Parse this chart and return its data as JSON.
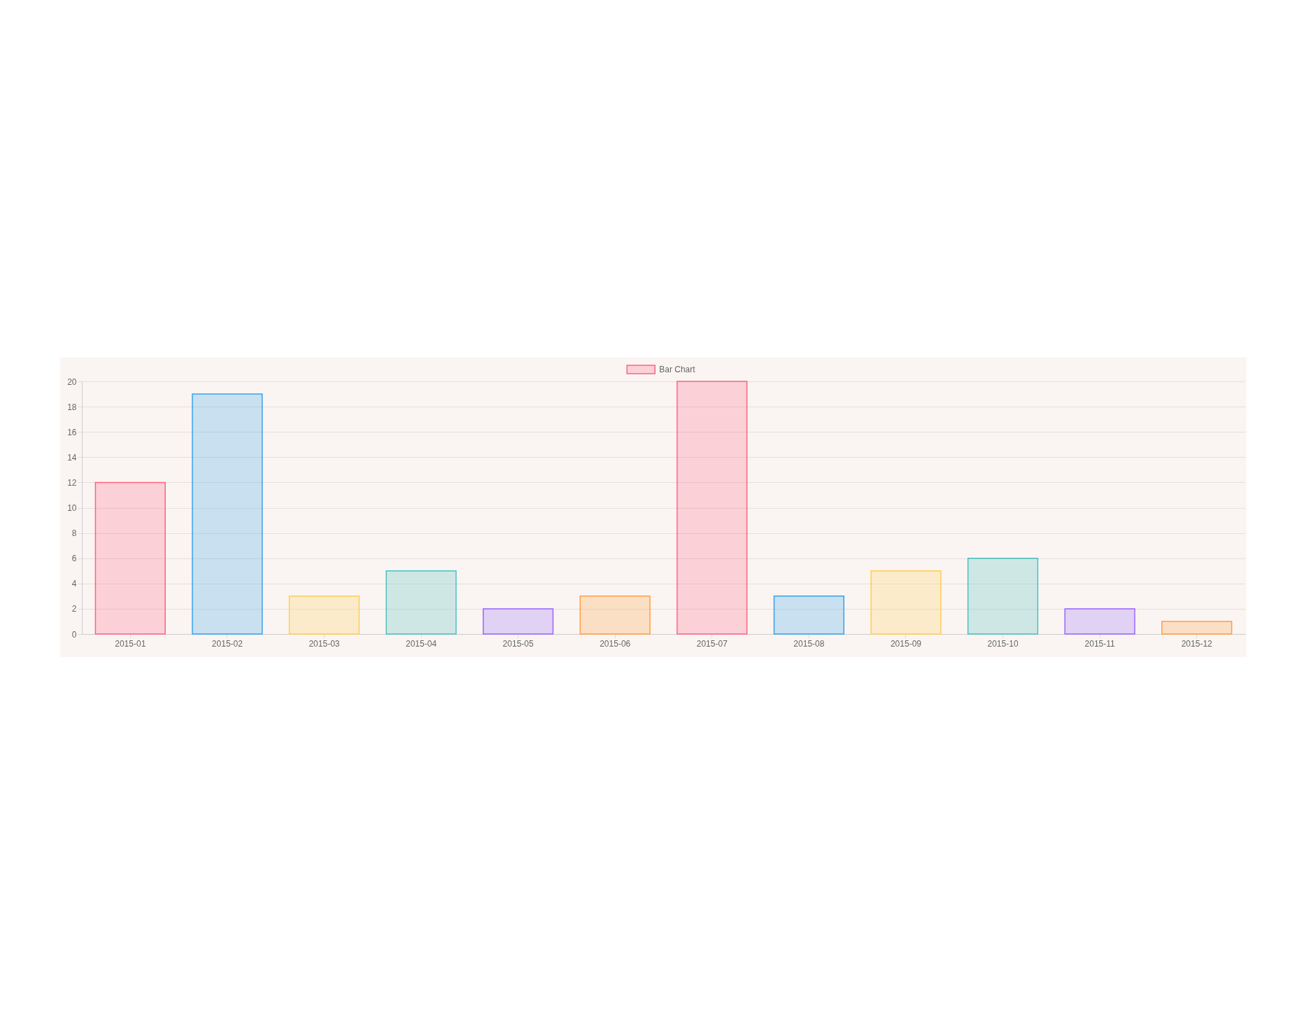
{
  "chart_data": {
    "type": "bar",
    "categories": [
      "2015-01",
      "2015-02",
      "2015-03",
      "2015-04",
      "2015-05",
      "2015-06",
      "2015-07",
      "2015-08",
      "2015-09",
      "2015-10",
      "2015-11",
      "2015-12"
    ],
    "series": [
      {
        "name": "Bar Chart",
        "values": [
          12,
          19,
          3,
          5,
          2,
          3,
          20,
          3,
          5,
          6,
          2,
          1
        ],
        "colors": [
          "#ff6384",
          "#36a2eb",
          "#ffce56",
          "#4bc0c0",
          "#9966ff",
          "#ff9f40",
          "#ff6384",
          "#36a2eb",
          "#ffce56",
          "#4bc0c0",
          "#9966ff",
          "#ff9f40"
        ]
      }
    ],
    "ylim": [
      0,
      20
    ],
    "yticks": [
      0,
      2,
      4,
      6,
      8,
      10,
      12,
      14,
      16,
      18,
      20
    ],
    "grid": "y",
    "legend": "top"
  }
}
